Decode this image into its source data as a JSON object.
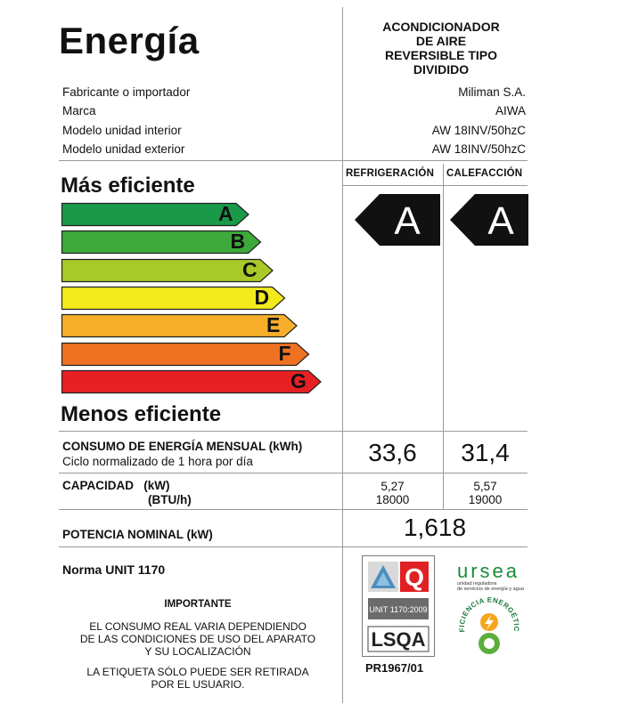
{
  "header": {
    "title": "Energía",
    "product_type": [
      "ACONDICIONADOR",
      "DE AIRE",
      "REVERSIBLE TIPO",
      "DIVIDIDO"
    ]
  },
  "info": [
    {
      "label": "Fabricante o importador",
      "value": "Miliman S.A."
    },
    {
      "label": "Marca",
      "value": "AIWA"
    },
    {
      "label": "Modelo unidad interior",
      "value": "AW 18INV/50hzC"
    },
    {
      "label": "Modelo unidad exterior",
      "value": "AW 18INV/50hzC"
    }
  ],
  "columns": {
    "cooling": "REFRIGERACIÓN",
    "heating": "CALEFACCIÓN"
  },
  "scale": {
    "top_label": "Más eficiente",
    "bottom_label": "Menos eficiente",
    "classes": [
      {
        "letter": "A",
        "color": "#1a9a48"
      },
      {
        "letter": "B",
        "color": "#3daa3a"
      },
      {
        "letter": "C",
        "color": "#a8c928"
      },
      {
        "letter": "D",
        "color": "#f3ea1c"
      },
      {
        "letter": "E",
        "color": "#f6ae2a"
      },
      {
        "letter": "F",
        "color": "#ef7222"
      },
      {
        "letter": "G",
        "color": "#e82024"
      }
    ]
  },
  "ratings": {
    "cooling": "A",
    "heating": "A",
    "arrow_color": "#111111"
  },
  "consumption": {
    "label": "CONSUMO DE ENERGÍA MENSUAL  (kWh)",
    "sublabel": "Ciclo normalizado de 1 hora por día",
    "cooling": "33,6",
    "heating": "31,4"
  },
  "capacity": {
    "label": "CAPACIDAD   (kW)",
    "label2": "(BTU/h)",
    "cooling_kw": "5,27",
    "cooling_btu": "18000",
    "heating_kw": "5,57",
    "heating_btu": "19000"
  },
  "power": {
    "label": "POTENCIA NOMINAL  (kW)",
    "value": "1,618"
  },
  "norm": "Norma UNIT 1170",
  "important": {
    "title": "IMPORTANTE",
    "text1": [
      "EL CONSUMO REAL VARIA DEPENDIENDO",
      "DE LAS CONDICIONES DE USO DEL APARATO",
      "Y SU LOCALIZACIÓN"
    ],
    "text2": [
      "LA ETIQUETA SÓLO PUEDE SER RETIRADA",
      "POR EL USUARIO."
    ]
  },
  "certification": {
    "unit_label": "UNIT 1170:2009",
    "lsqa": "LSQA",
    "q": "Q",
    "code": "PR1967/01"
  },
  "ursea": {
    "name": "ursea",
    "subtitle": [
      "unidad reguladora",
      "de servicios de energía y agua"
    ],
    "badge": "EFICIENCIA ENERGÉTICA"
  }
}
